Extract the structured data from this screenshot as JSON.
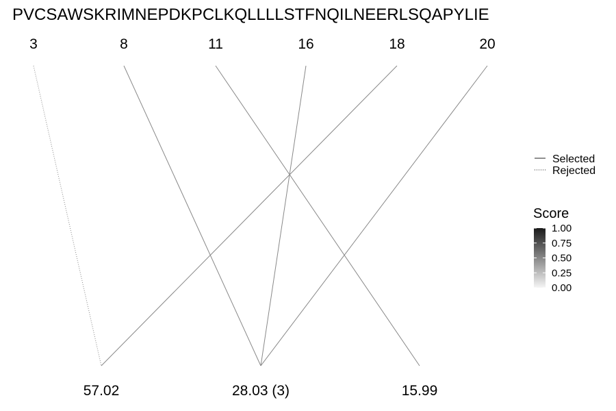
{
  "chart_data": {
    "type": "alignment-lines",
    "sequence": "PVCSAWSKRIMNEPDKPCLKQLLLLSTFNQILNEERLSQAPYLIE",
    "positions": [
      "3",
      "8",
      "11",
      "16",
      "18",
      "20"
    ],
    "scores": [
      "57.02",
      "28.03 (3)",
      "15.99"
    ],
    "links": [
      {
        "from": "3",
        "to": "57.02",
        "status": "rejected",
        "score": 0.5
      },
      {
        "from": "8",
        "to": "28.03 (3)",
        "status": "selected",
        "score": 0.5
      },
      {
        "from": "11",
        "to": "15.99",
        "status": "selected",
        "score": 0.5
      },
      {
        "from": "16",
        "to": "28.03 (3)",
        "status": "selected",
        "score": 0.5
      },
      {
        "from": "18",
        "to": "57.02",
        "status": "selected",
        "score": 0.5
      },
      {
        "from": "20",
        "to": "28.03 (3)",
        "status": "selected",
        "score": 0.5
      }
    ],
    "linetype_legend": [
      "Selected",
      "Rejected"
    ],
    "color_legend": {
      "title": "Score",
      "range": [
        0,
        1
      ],
      "ticks": [
        "1.00",
        "0.75",
        "0.50",
        "0.25",
        "0.00"
      ],
      "colors": [
        "#1a1a1a",
        "#f5f5f5"
      ]
    },
    "legend_placement": "right"
  }
}
